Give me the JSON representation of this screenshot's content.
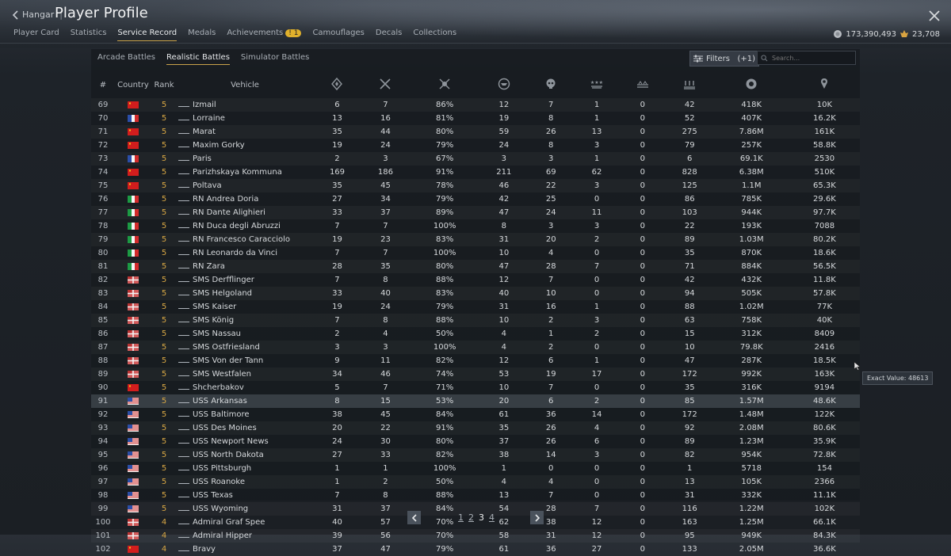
{
  "header": {
    "back_label": "Hangar",
    "separator": "|",
    "title": "Player Profile",
    "tabs": [
      {
        "label": "Player Card",
        "active": false
      },
      {
        "label": "Statistics",
        "active": false
      },
      {
        "label": "Service Record",
        "active": true
      },
      {
        "label": "Medals",
        "active": false
      },
      {
        "label": "Achievements",
        "active": false,
        "badge": "! 1"
      },
      {
        "label": "Camouflages",
        "active": false
      },
      {
        "label": "Decals",
        "active": false
      },
      {
        "label": "Collections",
        "active": false
      }
    ],
    "silver_lions": "173,390,493",
    "golden_eagles": "23,708"
  },
  "subtabs": [
    {
      "label": "Arcade Battles",
      "active": false
    },
    {
      "label": "Realistic Battles",
      "active": true
    },
    {
      "label": "Simulator Battles",
      "active": false
    }
  ],
  "filters": {
    "label": "Filters",
    "count": "(+1)"
  },
  "search": {
    "placeholder": "Search..."
  },
  "columns": {
    "index": "#",
    "country": "Country",
    "rank": "Rank",
    "vehicle": "Vehicle"
  },
  "stat_icons": [
    "battles-icon",
    "victories-icon",
    "win-rate-icon",
    "respawns-icon",
    "deaths-icon",
    "ships-destroyed-icon",
    "ground-destroyed-icon",
    "aircraft-destroyed-icon",
    "silver-earned-icon",
    "research-points-icon"
  ],
  "rows": [
    {
      "n": "69",
      "country": "ussr",
      "rank": "5",
      "vehicle": "Izmail",
      "s": [
        "6",
        "7",
        "86%",
        "12",
        "7",
        "1",
        "0",
        "42",
        "418K",
        "10K"
      ]
    },
    {
      "n": "70",
      "country": "france",
      "rank": "5",
      "vehicle": "Lorraine",
      "s": [
        "13",
        "16",
        "81%",
        "19",
        "8",
        "1",
        "0",
        "52",
        "407K",
        "16.2K"
      ]
    },
    {
      "n": "71",
      "country": "ussr",
      "rank": "5",
      "vehicle": "Marat",
      "s": [
        "35",
        "44",
        "80%",
        "59",
        "26",
        "13",
        "0",
        "275",
        "7.86M",
        "161K"
      ]
    },
    {
      "n": "72",
      "country": "ussr",
      "rank": "5",
      "vehicle": "Maxim Gorky",
      "s": [
        "19",
        "24",
        "79%",
        "24",
        "8",
        "3",
        "0",
        "79",
        "257K",
        "58.8K"
      ]
    },
    {
      "n": "73",
      "country": "france",
      "rank": "5",
      "vehicle": "Paris",
      "s": [
        "2",
        "3",
        "67%",
        "3",
        "3",
        "1",
        "0",
        "6",
        "69.1K",
        "2530"
      ]
    },
    {
      "n": "74",
      "country": "ussr",
      "rank": "5",
      "vehicle": "Parizhskaya Kommuna",
      "s": [
        "169",
        "186",
        "91%",
        "211",
        "69",
        "62",
        "0",
        "828",
        "6.38M",
        "510K"
      ]
    },
    {
      "n": "75",
      "country": "ussr",
      "rank": "5",
      "vehicle": "Poltava",
      "s": [
        "35",
        "45",
        "78%",
        "46",
        "22",
        "3",
        "0",
        "125",
        "1.1M",
        "65.3K"
      ]
    },
    {
      "n": "76",
      "country": "italy",
      "rank": "5",
      "vehicle": "RN Andrea Doria",
      "s": [
        "27",
        "34",
        "79%",
        "42",
        "25",
        "0",
        "0",
        "86",
        "785K",
        "29.6K"
      ]
    },
    {
      "n": "77",
      "country": "italy",
      "rank": "5",
      "vehicle": "RN Dante Alighieri",
      "s": [
        "33",
        "37",
        "89%",
        "47",
        "24",
        "11",
        "0",
        "103",
        "944K",
        "97.7K"
      ]
    },
    {
      "n": "78",
      "country": "italy",
      "rank": "5",
      "vehicle": "RN Duca degli Abruzzi",
      "s": [
        "7",
        "7",
        "100%",
        "8",
        "3",
        "3",
        "0",
        "22",
        "193K",
        "7088"
      ]
    },
    {
      "n": "79",
      "country": "italy",
      "rank": "5",
      "vehicle": "RN Francesco Caracciolo",
      "s": [
        "19",
        "23",
        "83%",
        "31",
        "20",
        "2",
        "0",
        "89",
        "1.03M",
        "80.2K"
      ]
    },
    {
      "n": "80",
      "country": "italy",
      "rank": "5",
      "vehicle": "RN Leonardo da Vinci",
      "s": [
        "7",
        "7",
        "100%",
        "10",
        "4",
        "0",
        "0",
        "35",
        "870K",
        "18.6K"
      ]
    },
    {
      "n": "81",
      "country": "italy",
      "rank": "5",
      "vehicle": "RN Zara",
      "s": [
        "28",
        "35",
        "80%",
        "47",
        "28",
        "7",
        "0",
        "71",
        "884K",
        "56.5K"
      ]
    },
    {
      "n": "82",
      "country": "germany",
      "rank": "5",
      "vehicle": "SMS Derfflinger",
      "s": [
        "7",
        "8",
        "88%",
        "12",
        "7",
        "0",
        "0",
        "42",
        "432K",
        "11.8K"
      ]
    },
    {
      "n": "83",
      "country": "germany",
      "rank": "5",
      "vehicle": "SMS Helgoland",
      "s": [
        "33",
        "40",
        "83%",
        "40",
        "10",
        "0",
        "0",
        "94",
        "505K",
        "57.8K"
      ]
    },
    {
      "n": "84",
      "country": "germany",
      "rank": "5",
      "vehicle": "SMS Kaiser",
      "s": [
        "19",
        "24",
        "79%",
        "31",
        "16",
        "1",
        "0",
        "88",
        "1.02M",
        "77K"
      ]
    },
    {
      "n": "85",
      "country": "germany",
      "rank": "5",
      "vehicle": "SMS König",
      "s": [
        "7",
        "8",
        "88%",
        "10",
        "2",
        "3",
        "0",
        "63",
        "758K",
        "40K"
      ]
    },
    {
      "n": "86",
      "country": "germany",
      "rank": "5",
      "vehicle": "SMS Nassau",
      "s": [
        "2",
        "4",
        "50%",
        "4",
        "1",
        "2",
        "0",
        "15",
        "312K",
        "8409"
      ]
    },
    {
      "n": "87",
      "country": "germany",
      "rank": "5",
      "vehicle": "SMS Ostfriesland",
      "s": [
        "3",
        "3",
        "100%",
        "4",
        "2",
        "0",
        "0",
        "10",
        "79.8K",
        "2416"
      ]
    },
    {
      "n": "88",
      "country": "germany",
      "rank": "5",
      "vehicle": "SMS Von der Tann",
      "s": [
        "9",
        "11",
        "82%",
        "12",
        "6",
        "1",
        "0",
        "47",
        "287K",
        "18.5K"
      ]
    },
    {
      "n": "89",
      "country": "germany",
      "rank": "5",
      "vehicle": "SMS Westfalen",
      "s": [
        "34",
        "46",
        "74%",
        "53",
        "19",
        "17",
        "0",
        "172",
        "992K",
        "163K"
      ]
    },
    {
      "n": "90",
      "country": "ussr",
      "rank": "5",
      "vehicle": "Shcherbakov",
      "s": [
        "5",
        "7",
        "71%",
        "10",
        "7",
        "0",
        "0",
        "35",
        "316K",
        "9194"
      ]
    },
    {
      "n": "91",
      "country": "usa",
      "rank": "5",
      "vehicle": "USS Arkansas",
      "s": [
        "8",
        "15",
        "53%",
        "20",
        "6",
        "2",
        "0",
        "85",
        "1.57M",
        "48.6K"
      ],
      "selected": true
    },
    {
      "n": "92",
      "country": "usa",
      "rank": "5",
      "vehicle": "USS Baltimore",
      "s": [
        "38",
        "45",
        "84%",
        "61",
        "36",
        "14",
        "0",
        "172",
        "1.48M",
        "122K"
      ]
    },
    {
      "n": "93",
      "country": "usa",
      "rank": "5",
      "vehicle": "USS Des Moines",
      "s": [
        "20",
        "22",
        "91%",
        "35",
        "26",
        "4",
        "0",
        "92",
        "2.08M",
        "80.6K"
      ]
    },
    {
      "n": "94",
      "country": "usa",
      "rank": "5",
      "vehicle": "USS Newport News",
      "s": [
        "24",
        "30",
        "80%",
        "37",
        "26",
        "6",
        "0",
        "89",
        "1.23M",
        "35.9K"
      ]
    },
    {
      "n": "95",
      "country": "usa",
      "rank": "5",
      "vehicle": "USS North Dakota",
      "s": [
        "27",
        "33",
        "82%",
        "38",
        "14",
        "3",
        "0",
        "82",
        "954K",
        "72.8K"
      ]
    },
    {
      "n": "96",
      "country": "usa",
      "rank": "5",
      "vehicle": "USS Pittsburgh",
      "s": [
        "1",
        "1",
        "100%",
        "1",
        "0",
        "0",
        "0",
        "1",
        "5718",
        "154"
      ]
    },
    {
      "n": "97",
      "country": "usa",
      "rank": "5",
      "vehicle": "USS Roanoke",
      "s": [
        "1",
        "2",
        "50%",
        "4",
        "4",
        "0",
        "0",
        "13",
        "105K",
        "2366"
      ]
    },
    {
      "n": "98",
      "country": "usa",
      "rank": "5",
      "vehicle": "USS Texas",
      "s": [
        "7",
        "8",
        "88%",
        "13",
        "7",
        "0",
        "0",
        "31",
        "332K",
        "11.1K"
      ]
    },
    {
      "n": "99",
      "country": "usa",
      "rank": "5",
      "vehicle": "USS Wyoming",
      "s": [
        "31",
        "37",
        "84%",
        "54",
        "28",
        "7",
        "0",
        "116",
        "1.22M",
        "102K"
      ]
    },
    {
      "n": "100",
      "country": "germany",
      "rank": "4",
      "vehicle": "Admiral Graf Spee",
      "s": [
        "40",
        "57",
        "70%",
        "62",
        "38",
        "12",
        "0",
        "163",
        "1.25M",
        "66.1K"
      ]
    },
    {
      "n": "101",
      "country": "germany",
      "rank": "4",
      "vehicle": "Admiral Hipper",
      "s": [
        "39",
        "56",
        "70%",
        "58",
        "31",
        "12",
        "0",
        "95",
        "949K",
        "84.3K"
      ]
    },
    {
      "n": "102",
      "country": "ussr",
      "rank": "4",
      "vehicle": "Bravy",
      "s": [
        "37",
        "47",
        "79%",
        "61",
        "36",
        "27",
        "0",
        "133",
        "2.05M",
        "36.6K"
      ]
    }
  ],
  "tooltip": "Exact Value: 48613",
  "pagination": {
    "pages": [
      "1",
      "2",
      "3",
      "4"
    ],
    "current": "3"
  },
  "colors": {
    "accent": "#c9a24a",
    "rank": "#d8a744",
    "badge": "#e0b12c"
  }
}
